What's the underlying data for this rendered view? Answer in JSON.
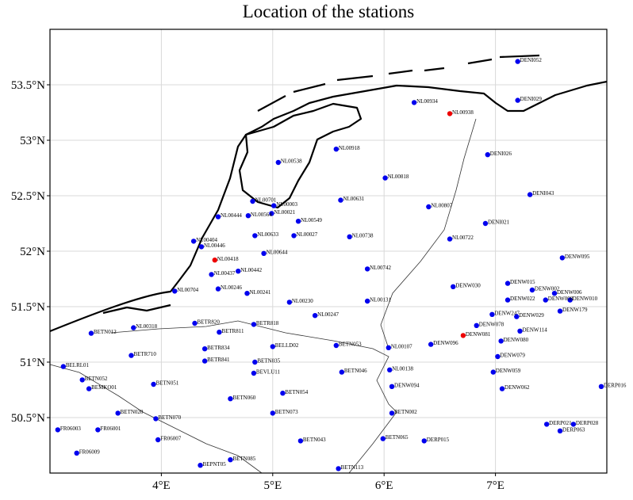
{
  "chart_data": {
    "type": "scatter",
    "title": "Location of the stations",
    "xlim": [
      3,
      8
    ],
    "ylim": [
      50,
      54
    ],
    "xticks": [
      {
        "value": 4,
        "label": "4°E"
      },
      {
        "value": 5,
        "label": "5°E"
      },
      {
        "value": 6,
        "label": "6°E"
      },
      {
        "value": 7,
        "label": "7°E"
      }
    ],
    "yticks": [
      {
        "value": 50.5,
        "label": "50.5°N"
      },
      {
        "value": 51,
        "label": "51°N"
      },
      {
        "value": 51.5,
        "label": "51.5°N"
      },
      {
        "value": 52,
        "label": "52°N"
      },
      {
        "value": 52.5,
        "label": "52.5°N"
      },
      {
        "value": 53,
        "label": "53°N"
      },
      {
        "value": 53.5,
        "label": "53.5°N"
      }
    ],
    "grid": true,
    "series": [
      {
        "color": "#0000ee",
        "labels": [
          "DENI052",
          "DENI029",
          "NL00934",
          "NL00918",
          "DENI026",
          "NL00538",
          "NL00818",
          "DENI043",
          "NL00631",
          "NL00807",
          "NL00701",
          "NL00003",
          "NL00021",
          "NL00444",
          "NL00564",
          "NL00549",
          "DENI021",
          "NL00633",
          "NL00027",
          "NL00738",
          "NL00722",
          "NL00404",
          "NL00446",
          "NL00644",
          "DENW095",
          "NL00442",
          "NL00437",
          "NL00742",
          "DENW030",
          "DENW015",
          "NL00246",
          "NL00704",
          "NL00241",
          "DENW002",
          "DENW006",
          "DENW010",
          "DENW008",
          "DENW022",
          "NL00230",
          "NL00131",
          "DENW179",
          "DENW247",
          "DENW029",
          "NL00247",
          "NL00318",
          "BETN012",
          "BETR820",
          "BETR818",
          "DENW114",
          "DENW078",
          "BETR811",
          "BETR834",
          "DENW096",
          "DENW080",
          "NL00107",
          "BETN053",
          "BELLD02",
          "BETR710",
          "DENW079",
          "BETR841",
          "BETN035",
          "BELRL01",
          "DENW059",
          "NL00138",
          "BETN046",
          "BEVLU11",
          "BETN052",
          "BETN051",
          "DENW094",
          "DENW062",
          "DERP016",
          "BEMKO01",
          "BETN054",
          "BETN060",
          "BETN002",
          "BETN073",
          "BETN020",
          "BETN070",
          "DERP021",
          "DERP028",
          "DERP063",
          "FR06003",
          "FR06001",
          "DERP015",
          "BETN065",
          "BETN043",
          "FR06007",
          "FR06009",
          "BETN085",
          "BEPNT05",
          "BETN113"
        ],
        "x": [
          7.2,
          7.2,
          6.27,
          5.57,
          6.93,
          5.05,
          6.01,
          7.31,
          5.61,
          6.4,
          4.82,
          5.01,
          4.99,
          4.51,
          4.78,
          5.23,
          6.91,
          4.84,
          5.19,
          5.69,
          6.59,
          4.29,
          4.36,
          4.92,
          7.6,
          4.69,
          4.45,
          5.85,
          6.62,
          7.11,
          4.51,
          4.12,
          4.77,
          7.33,
          7.53,
          7.67,
          7.45,
          7.11,
          5.15,
          5.85,
          7.58,
          6.97,
          7.19,
          5.38,
          3.75,
          3.37,
          4.3,
          4.83,
          7.22,
          6.83,
          4.52,
          4.39,
          6.42,
          7.05,
          6.04,
          5.57,
          5.0,
          3.73,
          7.02,
          4.39,
          4.84,
          3.12,
          6.98,
          6.05,
          5.62,
          4.83,
          3.29,
          3.93,
          6.07,
          7.06,
          7.95,
          3.35,
          5.09,
          4.62,
          6.07,
          5.0,
          3.61,
          3.95,
          7.46,
          7.7,
          7.58,
          3.07,
          3.43,
          6.36,
          5.99,
          5.25,
          3.97,
          3.24,
          4.62,
          4.35,
          5.59
        ],
        "values": [
          53.71,
          53.36,
          53.34,
          52.92,
          52.87,
          52.8,
          52.66,
          52.51,
          52.46,
          52.4,
          52.45,
          52.41,
          52.34,
          52.31,
          52.32,
          52.27,
          52.25,
          52.14,
          52.14,
          52.13,
          52.11,
          52.09,
          52.04,
          51.98,
          51.94,
          51.82,
          51.79,
          51.84,
          51.68,
          51.71,
          51.66,
          51.64,
          51.62,
          51.65,
          51.62,
          51.56,
          51.56,
          51.56,
          51.54,
          51.55,
          51.46,
          51.43,
          51.41,
          51.42,
          51.31,
          51.26,
          51.35,
          51.34,
          51.28,
          51.33,
          51.27,
          51.12,
          51.16,
          51.19,
          51.13,
          51.15,
          51.14,
          51.06,
          51.05,
          51.01,
          51.0,
          50.96,
          50.91,
          50.93,
          50.91,
          50.9,
          50.84,
          50.8,
          50.78,
          50.76,
          50.78,
          50.76,
          50.72,
          50.67,
          50.54,
          50.54,
          50.54,
          50.49,
          50.44,
          50.44,
          50.38,
          50.39,
          50.39,
          50.29,
          50.31,
          50.29,
          50.3,
          50.18,
          50.12,
          50.07,
          50.04
        ]
      },
      {
        "color": "#ee0000",
        "labels": [
          "NL00938",
          "NL00418",
          "DENW081"
        ],
        "x": [
          6.59,
          4.48,
          6.71
        ],
        "values": [
          53.24,
          51.92,
          51.24
        ]
      }
    ]
  }
}
